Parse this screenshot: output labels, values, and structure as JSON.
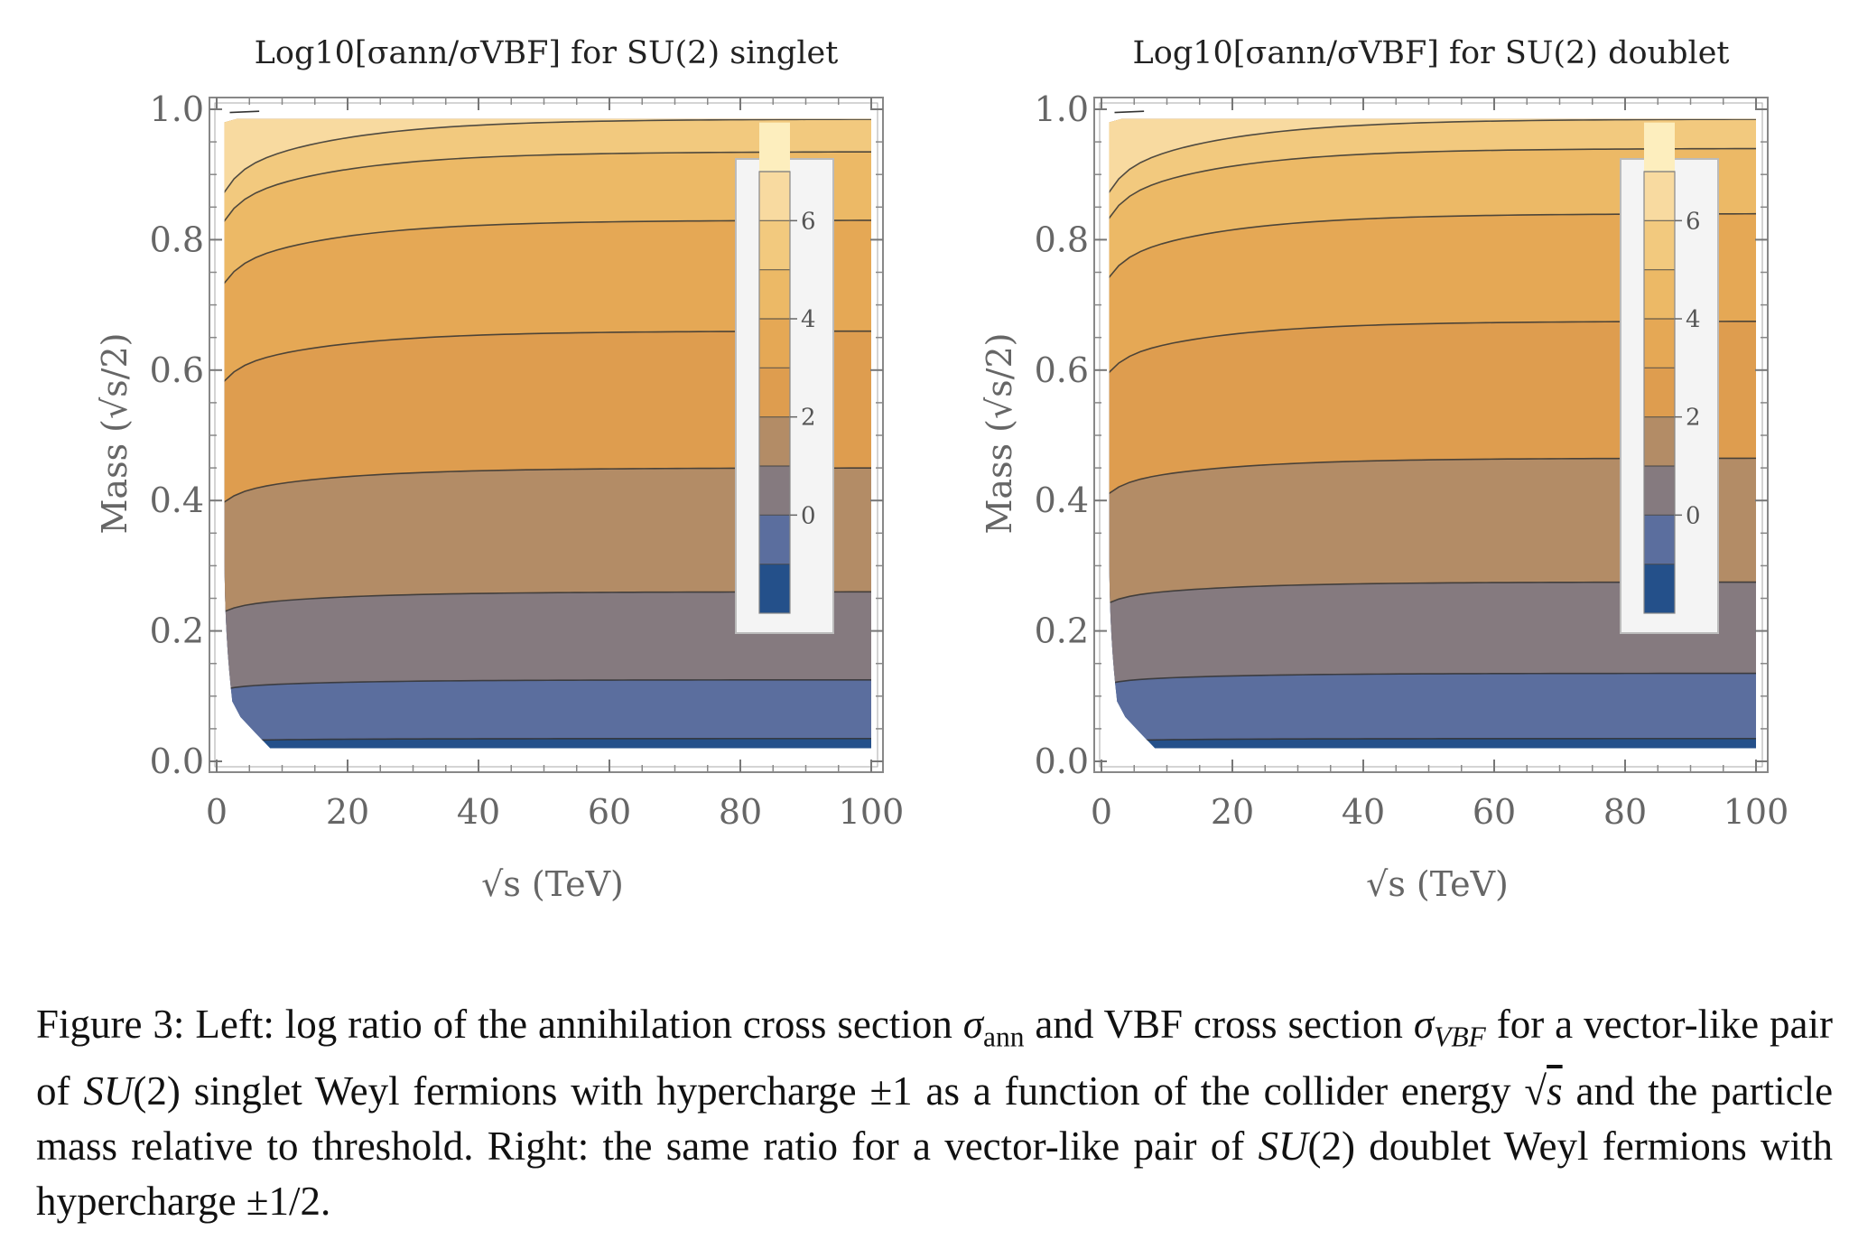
{
  "chart_data": [
    {
      "type": "contour",
      "title": "Log10[σann/σVBF] for SU(2) singlet",
      "xlabel": "√s (TeV)",
      "ylabel": "Mass (√s/2)",
      "xlim": [
        0,
        100
      ],
      "ylim": [
        0.0,
        1.0
      ],
      "xticks": [
        "0",
        "20",
        "40",
        "60",
        "80",
        "100"
      ],
      "yticks": [
        "0.0",
        "0.2",
        "0.4",
        "0.6",
        "0.8",
        "1.0"
      ],
      "legend_placement": "top-right",
      "legend_ticks": [
        "0",
        "2",
        "4",
        "6"
      ],
      "contour_levels": [
        -1,
        0,
        1,
        2,
        3,
        4,
        5,
        6,
        7
      ],
      "contour_mass_at_high_energy": [
        0.035,
        0.125,
        0.26,
        0.45,
        0.66,
        0.83,
        0.935,
        0.985
      ]
    },
    {
      "type": "contour",
      "title": "Log10[σann/σVBF] for SU(2) doublet",
      "xlabel": "√s (TeV)",
      "ylabel": "Mass (√s/2)",
      "xlim": [
        0,
        100
      ],
      "ylim": [
        0.0,
        1.0
      ],
      "xticks": [
        "0",
        "20",
        "40",
        "60",
        "80",
        "100"
      ],
      "yticks": [
        "0.0",
        "0.2",
        "0.4",
        "0.6",
        "0.8",
        "1.0"
      ],
      "legend_placement": "top-right",
      "legend_ticks": [
        "0",
        "2",
        "4",
        "6"
      ],
      "contour_levels": [
        -1,
        0,
        1,
        2,
        3,
        4,
        5,
        6,
        7
      ],
      "contour_mass_at_high_energy": [
        0.035,
        0.135,
        0.275,
        0.465,
        0.675,
        0.84,
        0.94,
        0.985
      ]
    }
  ],
  "band_colors": [
    "#24508a",
    "#5b6e9e",
    "#857a7f",
    "#b38c66",
    "#de9d4f",
    "#e5a855",
    "#ecb966",
    "#f2c97e",
    "#f8daa0",
    "#fdeebe"
  ],
  "caption": {
    "figure_label": "Figure 3:",
    "text_1": "Left: log ratio of the annihilation cross section",
    "sigma": "σ",
    "ann": "ann",
    "text_2": "and VBF cross section",
    "vbf": "VBF",
    "text_3": "for a vector-like pair of",
    "su": "SU",
    "two": "(2)",
    "text_4": "singlet Weyl fermions with hypercharge ±1 as a function of the collider energy",
    "sqrt_sym": "√",
    "s": "s",
    "text_5": "and the particle mass relative to threshold. Right: the same ratio for a vector-like pair of",
    "text_6": "doublet Weyl fermions with hypercharge ±1/2."
  }
}
